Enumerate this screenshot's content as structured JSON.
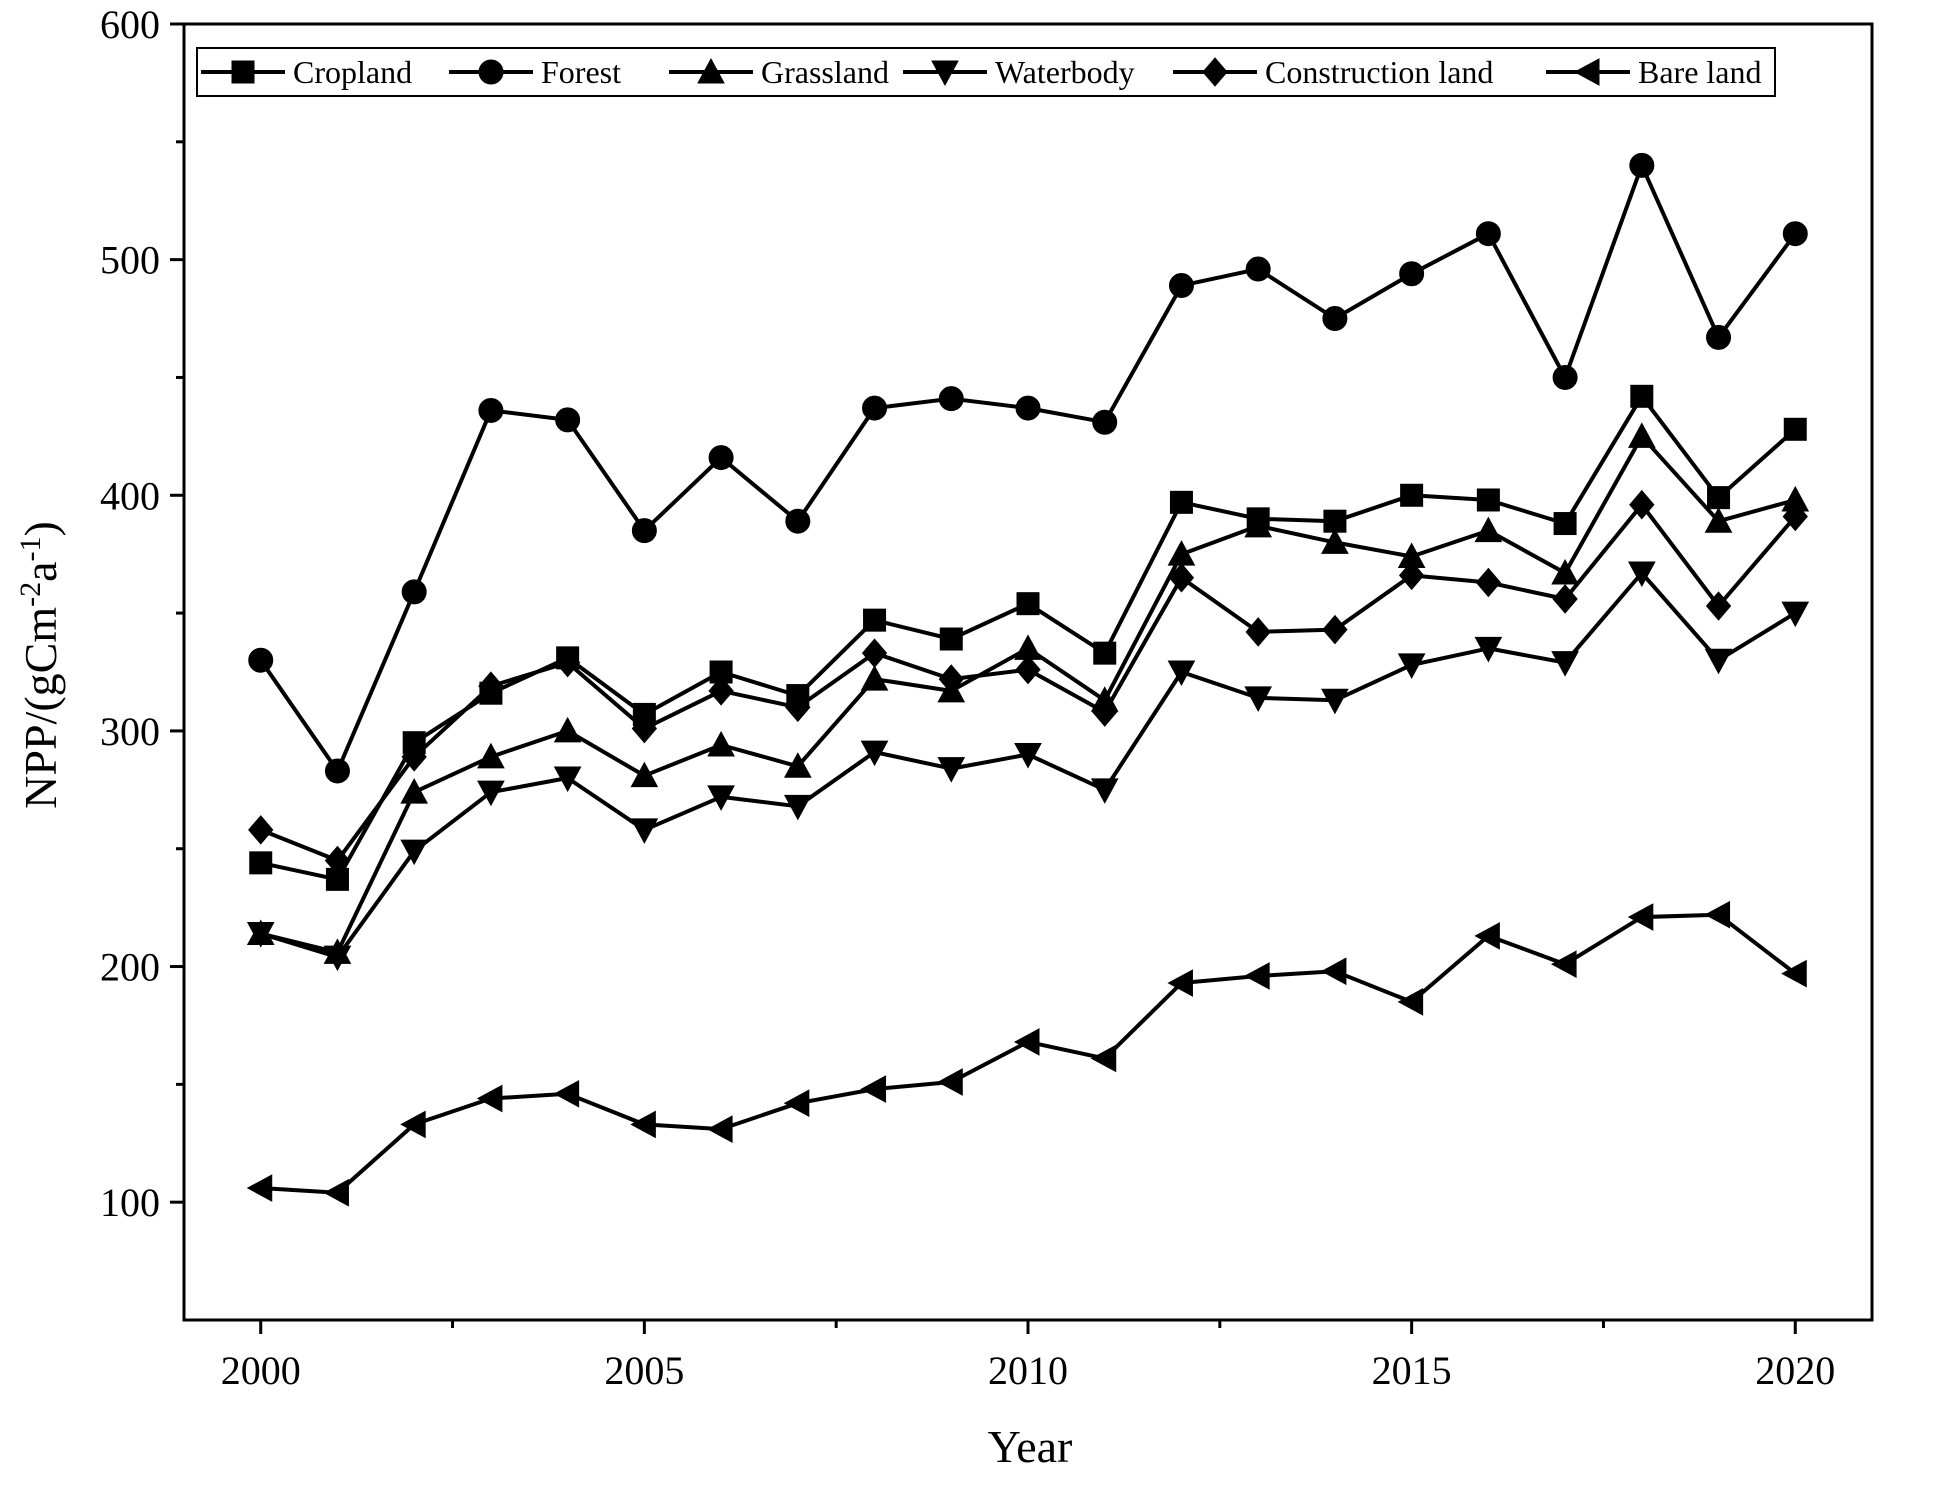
{
  "chart_data": {
    "type": "line",
    "xlabel": "Year",
    "ylabel_main": "NPP/(gCm",
    "ylabel_sup1": "-2",
    "ylabel_mid": "a",
    "ylabel_sup2": "-1",
    "ylabel_end": ")",
    "xlim": [
      1999,
      2021
    ],
    "ylim": [
      50,
      600
    ],
    "x_ticks": [
      2000,
      2005,
      2010,
      2015,
      2020
    ],
    "x_minor_ticks": [
      2002.5,
      2007.5,
      2012.5,
      2017.5
    ],
    "y_ticks": [
      100,
      200,
      300,
      400,
      500,
      600
    ],
    "y_minor_ticks": [
      150,
      250,
      350,
      450,
      550
    ],
    "grid": false,
    "legend_position": "top",
    "x": [
      2000,
      2001,
      2002,
      2003,
      2004,
      2005,
      2006,
      2007,
      2008,
      2009,
      2010,
      2011,
      2012,
      2013,
      2014,
      2015,
      2016,
      2017,
      2018,
      2019,
      2020
    ],
    "series": [
      {
        "name": "Cropland",
        "marker": "square",
        "color": "#000000",
        "values": [
          244,
          237,
          295,
          316,
          331,
          307,
          325,
          315,
          347,
          339,
          354,
          333,
          397,
          390,
          389,
          400,
          398,
          388,
          442,
          399,
          428
        ]
      },
      {
        "name": "Forest",
        "marker": "circle",
        "color": "#000000",
        "values": [
          330,
          283,
          359,
          436,
          432,
          385,
          416,
          389,
          437,
          441,
          437,
          431,
          489,
          496,
          475,
          494,
          511,
          450,
          540,
          467,
          511
        ]
      },
      {
        "name": "Grassland",
        "marker": "triangle-up",
        "color": "#000000",
        "values": [
          214,
          206,
          274,
          289,
          300,
          281,
          294,
          285,
          322,
          317,
          335,
          313,
          375,
          387,
          380,
          374,
          385,
          367,
          425,
          389,
          398
        ]
      },
      {
        "name": "Waterbody",
        "marker": "triangle-down",
        "color": "#000000",
        "values": [
          214,
          204,
          249,
          274,
          280,
          258,
          272,
          268,
          291,
          284,
          290,
          275,
          325,
          314,
          313,
          328,
          335,
          329,
          367,
          330,
          350
        ]
      },
      {
        "name": "Construction land",
        "marker": "diamond",
        "color": "#000000",
        "values": [
          258,
          245,
          289,
          319,
          329,
          301,
          317,
          310,
          333,
          322,
          326,
          308,
          365,
          342,
          343,
          366,
          363,
          356,
          396,
          353,
          391
        ]
      },
      {
        "name": "Bare land",
        "marker": "triangle-left",
        "color": "#000000",
        "values": [
          106,
          104,
          133,
          144,
          146,
          133,
          131,
          142,
          148,
          151,
          168,
          161,
          193,
          196,
          198,
          185,
          213,
          201,
          221,
          222,
          197
        ]
      }
    ]
  }
}
